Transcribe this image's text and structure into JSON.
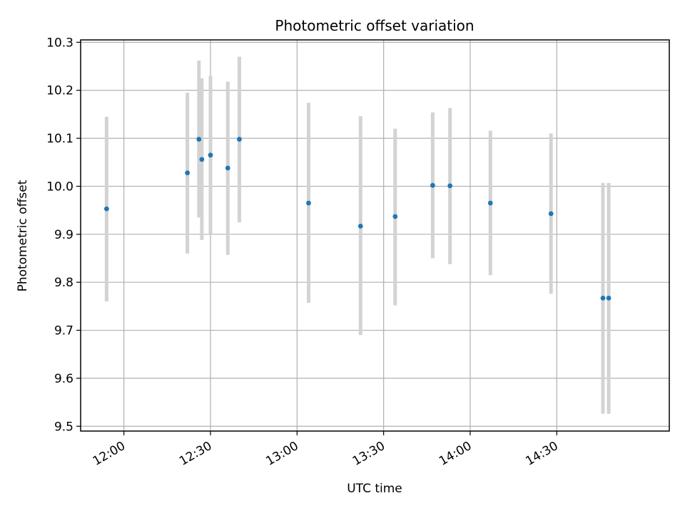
{
  "chart_data": {
    "type": "scatter",
    "title": "Photometric offset variation",
    "xlabel": "UTC time",
    "ylabel": "Photometric offset",
    "xlim": [
      "11:45",
      "15:09"
    ],
    "ylim": [
      9.49,
      10.305
    ],
    "grid": true,
    "xticks": [
      "12:00",
      "12:30",
      "13:00",
      "13:30",
      "14:00",
      "14:30"
    ],
    "yticks": [
      "9.5",
      "9.6",
      "9.7",
      "9.8",
      "9.9",
      "10.0",
      "10.1",
      "10.2",
      "10.3"
    ],
    "colors": {
      "points": "#1f77b4",
      "errorbars": "#d3d3d3",
      "grid": "#b0b0b0"
    },
    "points": [
      {
        "x": "11:54",
        "y": 9.953,
        "ylow": 9.76,
        "yhigh": 10.145
      },
      {
        "x": "12:22",
        "y": 10.028,
        "ylow": 9.86,
        "yhigh": 10.195
      },
      {
        "x": "12:26",
        "y": 10.098,
        "ylow": 9.935,
        "yhigh": 10.262
      },
      {
        "x": "12:27",
        "y": 10.056,
        "ylow": 9.888,
        "yhigh": 10.225
      },
      {
        "x": "12:30",
        "y": 10.065,
        "ylow": 9.9,
        "yhigh": 10.23
      },
      {
        "x": "12:36",
        "y": 10.038,
        "ylow": 9.857,
        "yhigh": 10.218
      },
      {
        "x": "12:40",
        "y": 10.098,
        "ylow": 9.925,
        "yhigh": 10.27
      },
      {
        "x": "13:04",
        "y": 9.965,
        "ylow": 9.757,
        "yhigh": 10.174
      },
      {
        "x": "13:22",
        "y": 9.917,
        "ylow": 9.69,
        "yhigh": 10.146
      },
      {
        "x": "13:34",
        "y": 9.937,
        "ylow": 9.752,
        "yhigh": 10.12
      },
      {
        "x": "13:47",
        "y": 10.002,
        "ylow": 9.85,
        "yhigh": 10.154
      },
      {
        "x": "13:53",
        "y": 10.001,
        "ylow": 9.838,
        "yhigh": 10.163
      },
      {
        "x": "14:07",
        "y": 9.965,
        "ylow": 9.815,
        "yhigh": 10.116
      },
      {
        "x": "14:28",
        "y": 9.943,
        "ylow": 9.776,
        "yhigh": 10.11
      },
      {
        "x": "14:46",
        "y": 9.767,
        "ylow": 9.526,
        "yhigh": 10.007
      },
      {
        "x": "14:48",
        "y": 9.767,
        "ylow": 9.526,
        "yhigh": 10.007
      }
    ]
  }
}
